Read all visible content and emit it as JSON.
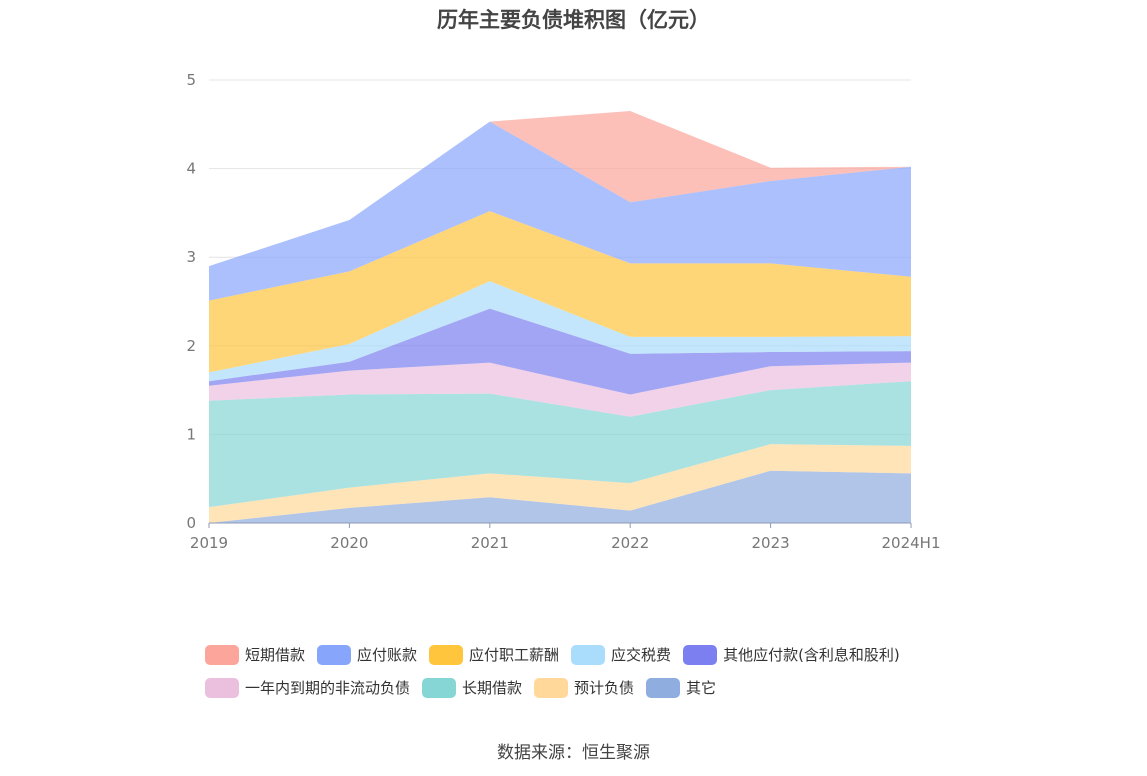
{
  "title": "历年主要负债堆积图（亿元）",
  "source_text": "数据来源：恒生聚源",
  "chart_data": {
    "type": "area",
    "stacked": true,
    "categories": [
      "2019",
      "2020",
      "2021",
      "2022",
      "2023",
      "2024H1"
    ],
    "ylim": [
      0,
      5
    ],
    "yticks": [
      "0",
      "1",
      "2",
      "3",
      "4",
      "5"
    ],
    "grid": true,
    "legend_position": "bottom",
    "series": [
      {
        "name": "其它",
        "color": "#8fadde",
        "values": [
          0.0,
          0.17,
          0.29,
          0.14,
          0.59,
          0.56
        ]
      },
      {
        "name": "预计负债",
        "color": "#ffd89a",
        "values": [
          0.18,
          0.23,
          0.27,
          0.31,
          0.3,
          0.31
        ]
      },
      {
        "name": "长期借款",
        "color": "#86d6d6",
        "values": [
          1.2,
          1.05,
          0.9,
          0.75,
          0.61,
          0.73
        ]
      },
      {
        "name": "一年内到期的非流动负债",
        "color": "#ebbfde",
        "values": [
          0.17,
          0.27,
          0.35,
          0.25,
          0.27,
          0.21
        ]
      },
      {
        "name": "其他应付款(含利息和股利)",
        "color": "#7b7ff0",
        "values": [
          0.05,
          0.1,
          0.61,
          0.46,
          0.16,
          0.13
        ]
      },
      {
        "name": "应交税费",
        "color": "#aadcfb",
        "values": [
          0.1,
          0.2,
          0.31,
          0.19,
          0.17,
          0.17
        ]
      },
      {
        "name": "应付职工薪酬",
        "color": "#ffc53d",
        "values": [
          0.81,
          0.82,
          0.79,
          0.83,
          0.83,
          0.67
        ]
      },
      {
        "name": "应付账款",
        "color": "#87a5fb",
        "values": [
          0.39,
          0.58,
          1.01,
          0.69,
          0.93,
          1.24
        ]
      },
      {
        "name": "短期借款",
        "color": "#fba59b",
        "values": [
          0.0,
          0.0,
          0.0,
          1.03,
          0.15,
          0.0
        ]
      }
    ]
  },
  "legend_order": [
    [
      "短期借款",
      "应付账款",
      "应付职工薪酬",
      "应交税费",
      "其他应付款(含利息和股利)"
    ],
    [
      "一年内到期的非流动负债",
      "长期借款",
      "预计负债",
      "其它"
    ]
  ]
}
